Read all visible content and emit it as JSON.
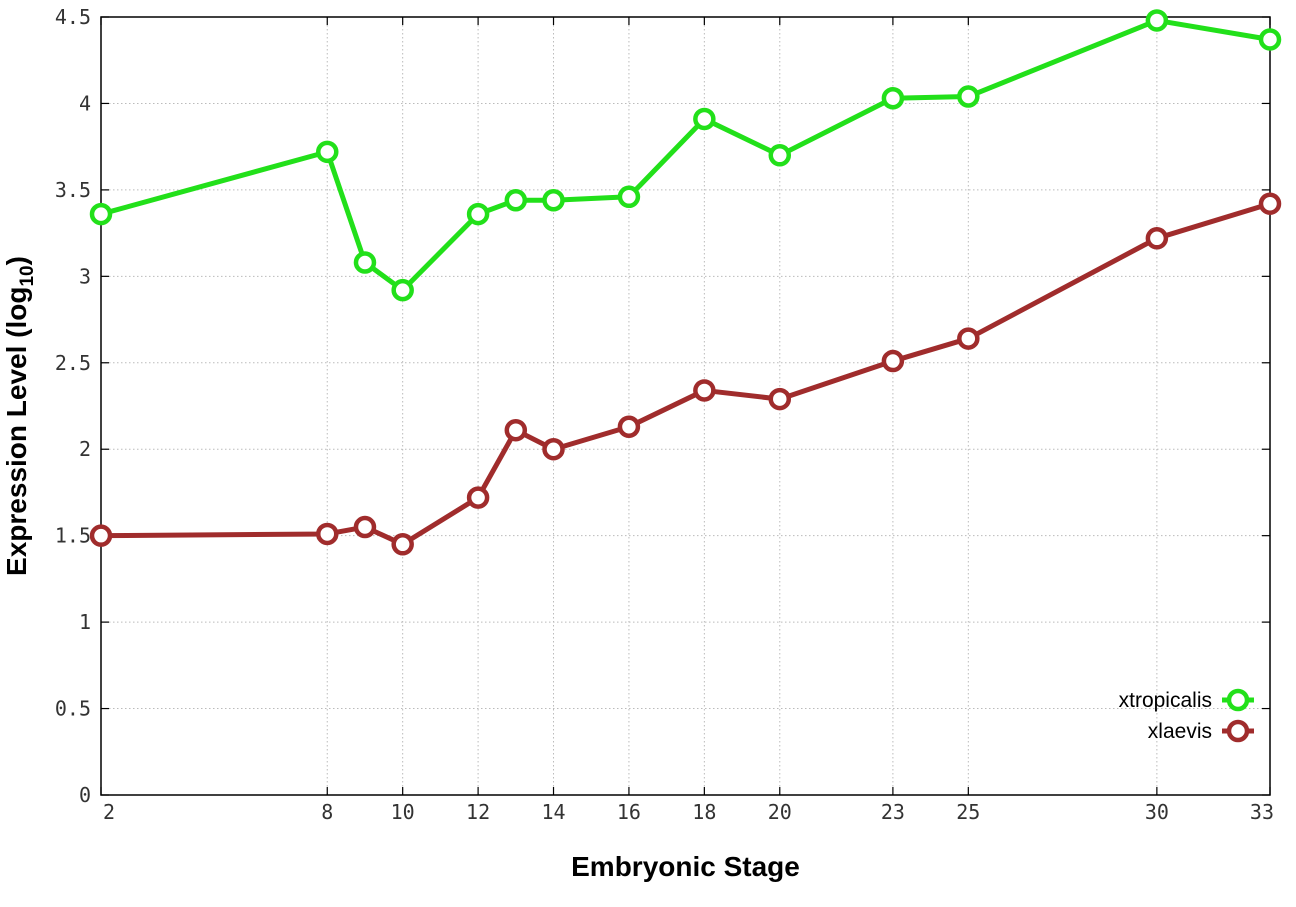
{
  "chart_data": {
    "type": "line",
    "xlabel": "Embryonic Stage",
    "ylabel": "Expression Level (log",
    "ylabel_sub": "10",
    "ylabel_close": ")",
    "x": [
      "2",
      "8",
      "9",
      "10",
      "12",
      "13",
      "14",
      "16",
      "18",
      "20",
      "23",
      "25",
      "30",
      "33"
    ],
    "x_tick_labels": [
      "2",
      "8",
      "10",
      "12",
      "14",
      "16",
      "18",
      "20",
      "23",
      "25",
      "30",
      "33"
    ],
    "y_ticks": [
      "0",
      "0.5",
      "1",
      "1.5",
      "2",
      "2.5",
      "3",
      "3.5",
      "4",
      "4.5"
    ],
    "ylim": [
      0,
      4.5
    ],
    "grid": true,
    "legend_position": "bottom-right",
    "series": [
      {
        "name": "xtropicalis",
        "color": "#22e01a",
        "values": [
          3.36,
          3.72,
          3.08,
          2.92,
          3.36,
          3.44,
          3.44,
          3.46,
          3.91,
          3.7,
          4.03,
          4.04,
          4.48,
          4.37
        ]
      },
      {
        "name": "xlaevis",
        "color": "#a02c2c",
        "values": [
          1.5,
          1.51,
          1.55,
          1.45,
          1.72,
          2.11,
          2.0,
          2.13,
          2.34,
          2.29,
          2.51,
          2.64,
          3.22,
          3.42
        ]
      }
    ]
  }
}
